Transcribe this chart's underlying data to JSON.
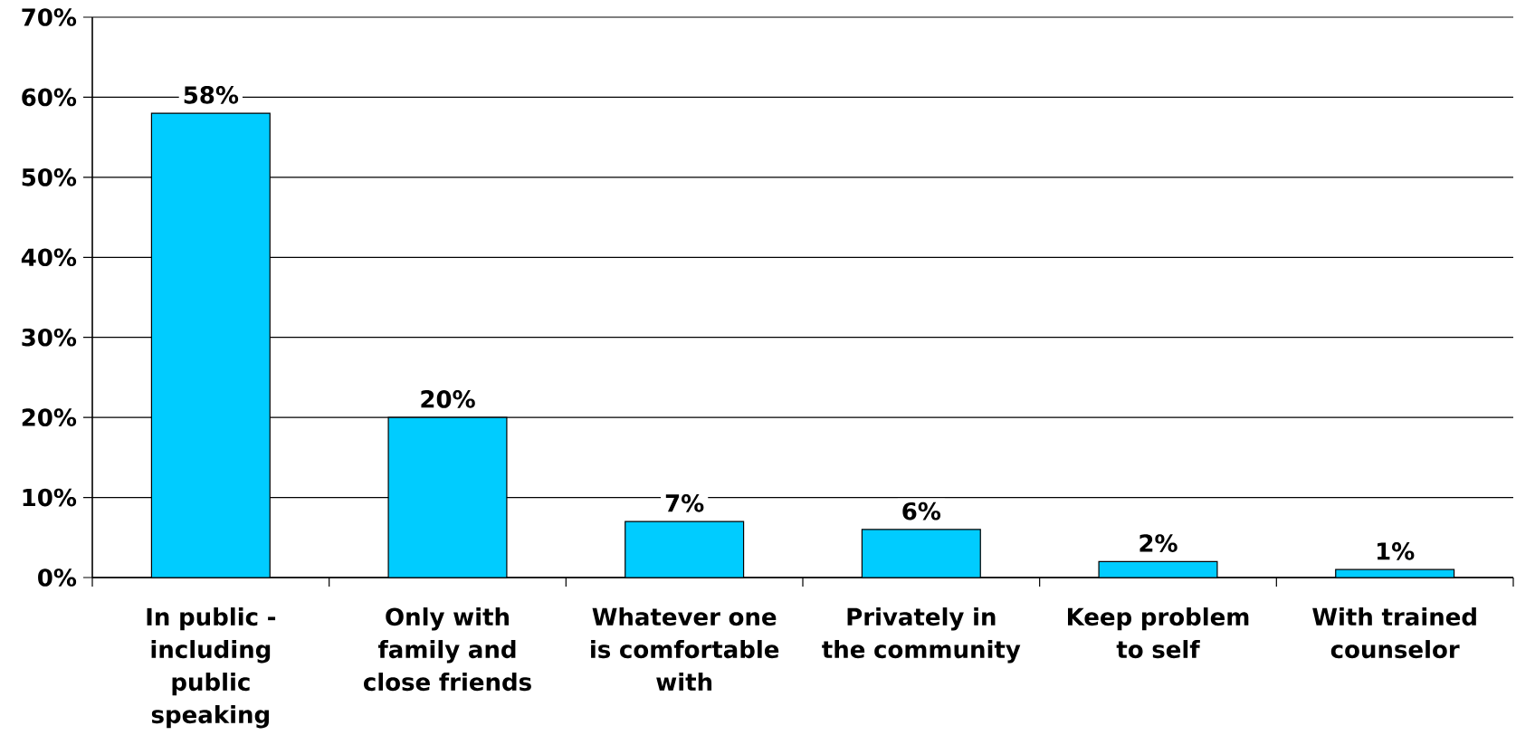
{
  "chart_data": {
    "type": "bar",
    "categories": [
      "In public - including public speaking",
      "Only with family and close friends",
      "Whatever one is comfortable with",
      "Privately in the community",
      "Keep problem to self",
      "With trained counselor"
    ],
    "values": [
      58,
      20,
      7,
      6,
      2,
      1
    ],
    "value_labels": [
      "58%",
      "20%",
      "7%",
      "6%",
      "2%",
      "1%"
    ],
    "color": "#00ccff",
    "ylim": [
      0,
      70
    ],
    "yticks": [
      {
        "value": 0,
        "label": "0%"
      },
      {
        "value": 10,
        "label": "10%"
      },
      {
        "value": 20,
        "label": "20%"
      },
      {
        "value": 30,
        "label": "30%"
      },
      {
        "value": 40,
        "label": "40%"
      },
      {
        "value": 50,
        "label": "50%"
      },
      {
        "value": 60,
        "label": "60%"
      },
      {
        "value": 70,
        "label": "70%"
      }
    ],
    "grid": "y"
  }
}
